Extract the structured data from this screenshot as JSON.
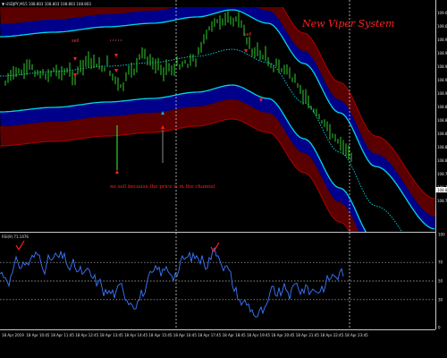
{
  "chart": {
    "symbol_header": "▼ USDJPY,M15  108.803 108.803 108.803 108.803",
    "system_title": "New Viper System",
    "sell_label": "sell",
    "annotation": "no sell because the price is in the channel",
    "colors": {
      "background": "#000000",
      "outer_band": "#5a0000",
      "band_edge": "#b00000",
      "inner_band": "#00008a",
      "cyan_line": "#00d8e8",
      "candles": "#2ed12e",
      "rsi_line": "#3a78ff",
      "arrow_red": "#ff2020",
      "arrow_blue": "#00b0ff"
    },
    "price_ticks": [
      "109.025",
      "109.005",
      "108.985",
      "108.965",
      "108.945",
      "108.925",
      "108.905",
      "108.885",
      "108.865",
      "108.845",
      "108.825",
      "108.803",
      "108.785",
      "108.765",
      "108.745"
    ],
    "indicator_header": "RSI(9) 71.1476",
    "rsi_ticks": [
      "100",
      "70",
      "50",
      "30",
      "0"
    ],
    "time_labels": [
      "18 Apr 2019",
      "18 Apr 10:45",
      "18 Apr 11:45",
      "18 Apr 12:45",
      "18 Apr 13:45",
      "18 Apr 14:45",
      "18 Apr 15:45",
      "18 Apr 16:45",
      "18 Apr 17:45",
      "18 Apr 18:45",
      "18 Apr 19:45",
      "18 Apr 20:45",
      "18 Apr 21:45",
      "18 Apr 22:45",
      "18 Apr 23:45"
    ]
  }
}
